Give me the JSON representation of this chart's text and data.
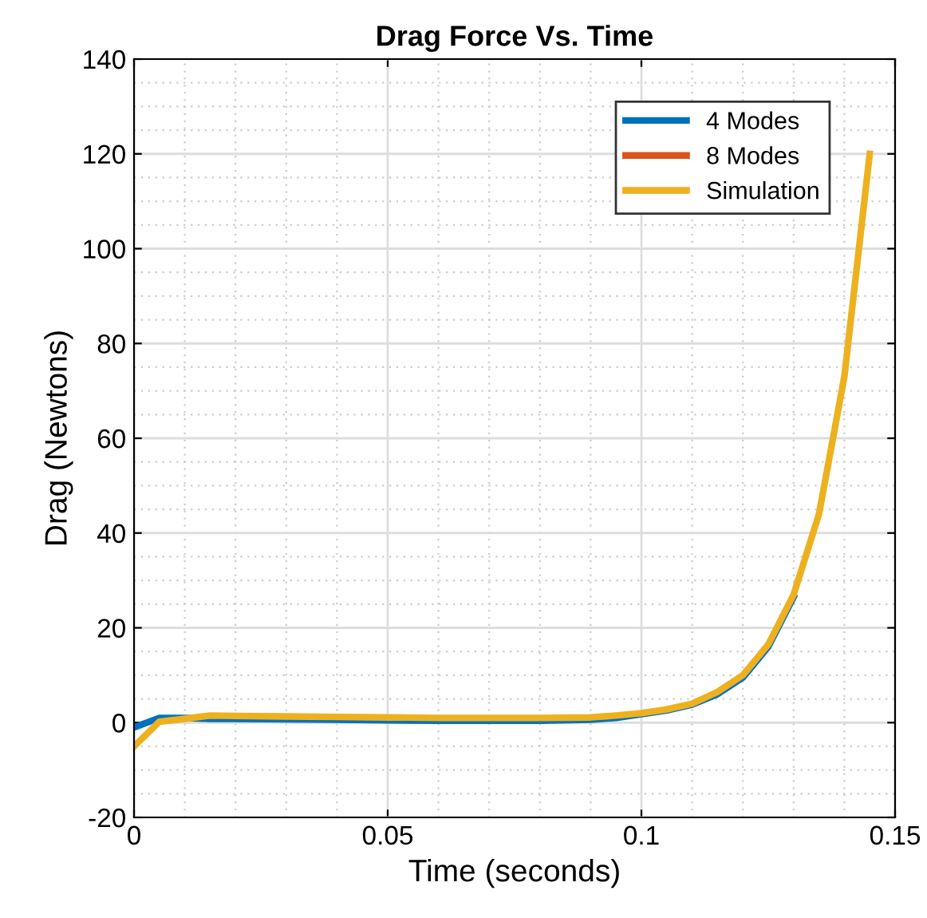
{
  "chart_data": {
    "type": "line",
    "title": "Drag Force Vs. Time",
    "xlabel": "Time (seconds)",
    "ylabel": "Drag (Newtons)",
    "x": [
      0,
      0.005,
      0.01,
      0.015,
      0.02,
      0.03,
      0.04,
      0.05,
      0.06,
      0.07,
      0.08,
      0.09,
      0.095,
      0.1,
      0.105,
      0.11,
      0.115,
      0.12,
      0.125,
      0.13,
      0.135,
      0.14,
      0.145
    ],
    "series": [
      {
        "name": "4 Modes",
        "color": "#0072bd",
        "values": [
          -1,
          1,
          1,
          0.8,
          0.8,
          0.7,
          0.6,
          0.5,
          0.4,
          0.4,
          0.4,
          0.6,
          1,
          1.8,
          2.6,
          3.8,
          6,
          9.5,
          16,
          26.5,
          null,
          null,
          null
        ]
      },
      {
        "name": "8 Modes",
        "color": "#d95319",
        "values": [
          null,
          null,
          null,
          null,
          null,
          null,
          null,
          null,
          null,
          null,
          null,
          null,
          null,
          null,
          null,
          null,
          null,
          null,
          null,
          null,
          null,
          null,
          null
        ]
      },
      {
        "name": "Simulation",
        "color": "#edb120",
        "values": [
          -5,
          0.2,
          0.8,
          1.5,
          1.4,
          1.3,
          1.2,
          1.1,
          1,
          1,
          1,
          1.1,
          1.5,
          2,
          2.8,
          4,
          6.5,
          10,
          16.5,
          27,
          44,
          73,
          120
        ]
      }
    ],
    "xlim": [
      0,
      0.15
    ],
    "xticks": [
      0,
      0.05,
      0.1,
      0.15
    ],
    "ylim": [
      -20,
      140
    ],
    "yticks": [
      -20,
      0,
      20,
      40,
      60,
      80,
      100,
      120,
      140
    ],
    "grid": true,
    "legend": "top right",
    "line_style": "solid",
    "marker": "none"
  }
}
